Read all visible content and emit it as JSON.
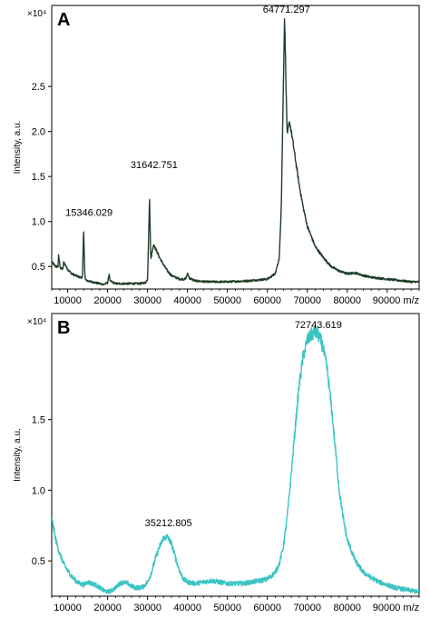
{
  "chart_data": [
    {
      "type": "line",
      "panel_label": "A",
      "ylabel": "Intensity, a.u.",
      "xlabel": "m/z",
      "y_multiplier": "×10⁴",
      "xlim": [
        6000,
        98000
      ],
      "ylim": [
        0.25,
        3.4
      ],
      "x_ticks": [
        10000,
        20000,
        30000,
        40000,
        50000,
        60000,
        70000,
        80000,
        90000
      ],
      "x_tick_labels": [
        "10000",
        "20000",
        "30000",
        "40000",
        "50000",
        "60000",
        "70000",
        "80000",
        "90000 m/z"
      ],
      "y_ticks": [
        0.5,
        1.0,
        1.5,
        2.0,
        2.5
      ],
      "y_tick_labels": [
        "0.5",
        "1.0",
        "1.5",
        "2.0",
        "2.5"
      ],
      "color": "#1f3d28",
      "noise": 0.012,
      "peak_labels": [
        {
          "x": 15346.029,
          "y": 1.02,
          "text": "15346.029"
        },
        {
          "x": 31642.751,
          "y": 1.55,
          "text": "31642.751"
        },
        {
          "x": 64771.297,
          "y": 3.28,
          "text": "64771.297"
        }
      ],
      "series": [
        {
          "x": [
            6000,
            7000,
            7600,
            7700,
            8200,
            8800,
            9000,
            10000,
            11000,
            12000,
            13000,
            13700,
            14000,
            14300,
            14400,
            14600,
            15000,
            16000,
            17000,
            18000,
            19000,
            20000,
            20400,
            20600,
            21000,
            22000,
            24000,
            26000,
            28000,
            29500,
            30000,
            30300,
            30500,
            30800,
            31000,
            31300,
            31600,
            31800,
            32000,
            33000,
            34000,
            35000,
            36000,
            38000,
            39500,
            40000,
            40500,
            42000,
            45000,
            50000,
            55000,
            60000,
            62000,
            63000,
            63500,
            64000,
            64300,
            64500,
            64770,
            65000,
            65300,
            65600,
            66000,
            66500,
            67000,
            67500,
            68000,
            69000,
            70000,
            72000,
            74000,
            76000,
            78000,
            80000,
            82000,
            84000,
            86000,
            88000,
            90000,
            92000,
            94000,
            96000,
            98000
          ],
          "y": [
            0.55,
            0.5,
            0.5,
            0.62,
            0.48,
            0.47,
            0.55,
            0.47,
            0.42,
            0.4,
            0.38,
            0.38,
            0.92,
            0.4,
            0.36,
            0.35,
            0.34,
            0.33,
            0.32,
            0.31,
            0.3,
            0.32,
            0.42,
            0.34,
            0.33,
            0.31,
            0.31,
            0.31,
            0.31,
            0.32,
            0.36,
            0.9,
            1.25,
            0.6,
            0.62,
            0.7,
            0.75,
            0.72,
            0.7,
            0.6,
            0.52,
            0.45,
            0.4,
            0.36,
            0.36,
            0.42,
            0.37,
            0.34,
            0.33,
            0.33,
            0.34,
            0.36,
            0.42,
            0.6,
            1.2,
            2.5,
            3.28,
            2.9,
            2.3,
            1.95,
            2.05,
            2.1,
            2.0,
            1.85,
            1.7,
            1.55,
            1.4,
            1.15,
            0.95,
            0.72,
            0.6,
            0.5,
            0.45,
            0.42,
            0.43,
            0.4,
            0.38,
            0.37,
            0.36,
            0.35,
            0.34,
            0.33,
            0.33
          ]
        }
      ]
    },
    {
      "type": "line",
      "panel_label": "B",
      "ylabel": "Intensity, a.u.",
      "xlabel": "m/z",
      "y_multiplier": "×10⁴",
      "xlim": [
        6000,
        98000
      ],
      "ylim": [
        0.25,
        2.25
      ],
      "x_ticks": [
        10000,
        20000,
        30000,
        40000,
        50000,
        60000,
        70000,
        80000,
        90000
      ],
      "x_tick_labels": [
        "10000",
        "20000",
        "30000",
        "40000",
        "50000",
        "60000",
        "70000",
        "80000",
        "90000 m/z"
      ],
      "y_ticks": [
        0.5,
        1.0,
        1.5
      ],
      "y_tick_labels": [
        "0.5",
        "1.0",
        "1.5"
      ],
      "color": "#3cc4c4",
      "noise": 0.018,
      "peak_labels": [
        {
          "x": 35212.805,
          "y": 0.72,
          "text": "35212.805"
        },
        {
          "x": 72743.619,
          "y": 2.12,
          "text": "72743.619"
        }
      ],
      "series": [
        {
          "x": [
            6000,
            7000,
            8000,
            9000,
            10000,
            11000,
            12000,
            13000,
            14000,
            15000,
            16000,
            17000,
            18000,
            19000,
            20000,
            21000,
            22000,
            23000,
            24000,
            25000,
            26000,
            27000,
            28000,
            29000,
            30000,
            31000,
            32000,
            33000,
            34000,
            35000,
            36000,
            37000,
            38000,
            39000,
            40000,
            42000,
            44000,
            46000,
            48000,
            50000,
            52000,
            54000,
            56000,
            58000,
            60000,
            62000,
            63000,
            64000,
            65000,
            66000,
            67000,
            68000,
            69000,
            70000,
            71000,
            72000,
            72700,
            73500,
            74000,
            75000,
            76000,
            77000,
            78000,
            79000,
            80000,
            82000,
            84000,
            86000,
            88000,
            90000,
            92000,
            94000,
            96000,
            98000
          ],
          "y": [
            0.8,
            0.65,
            0.55,
            0.48,
            0.43,
            0.39,
            0.36,
            0.34,
            0.33,
            0.35,
            0.34,
            0.33,
            0.31,
            0.29,
            0.28,
            0.29,
            0.31,
            0.34,
            0.35,
            0.34,
            0.32,
            0.31,
            0.31,
            0.32,
            0.35,
            0.42,
            0.52,
            0.6,
            0.66,
            0.67,
            0.62,
            0.52,
            0.43,
            0.37,
            0.35,
            0.34,
            0.35,
            0.36,
            0.35,
            0.34,
            0.34,
            0.34,
            0.35,
            0.36,
            0.37,
            0.42,
            0.48,
            0.6,
            0.82,
            1.12,
            1.45,
            1.75,
            1.95,
            2.06,
            2.1,
            2.12,
            2.1,
            2.05,
            2.0,
            1.85,
            1.6,
            1.3,
            1.0,
            0.8,
            0.65,
            0.5,
            0.42,
            0.38,
            0.35,
            0.33,
            0.31,
            0.3,
            0.29,
            0.28
          ]
        }
      ]
    }
  ]
}
